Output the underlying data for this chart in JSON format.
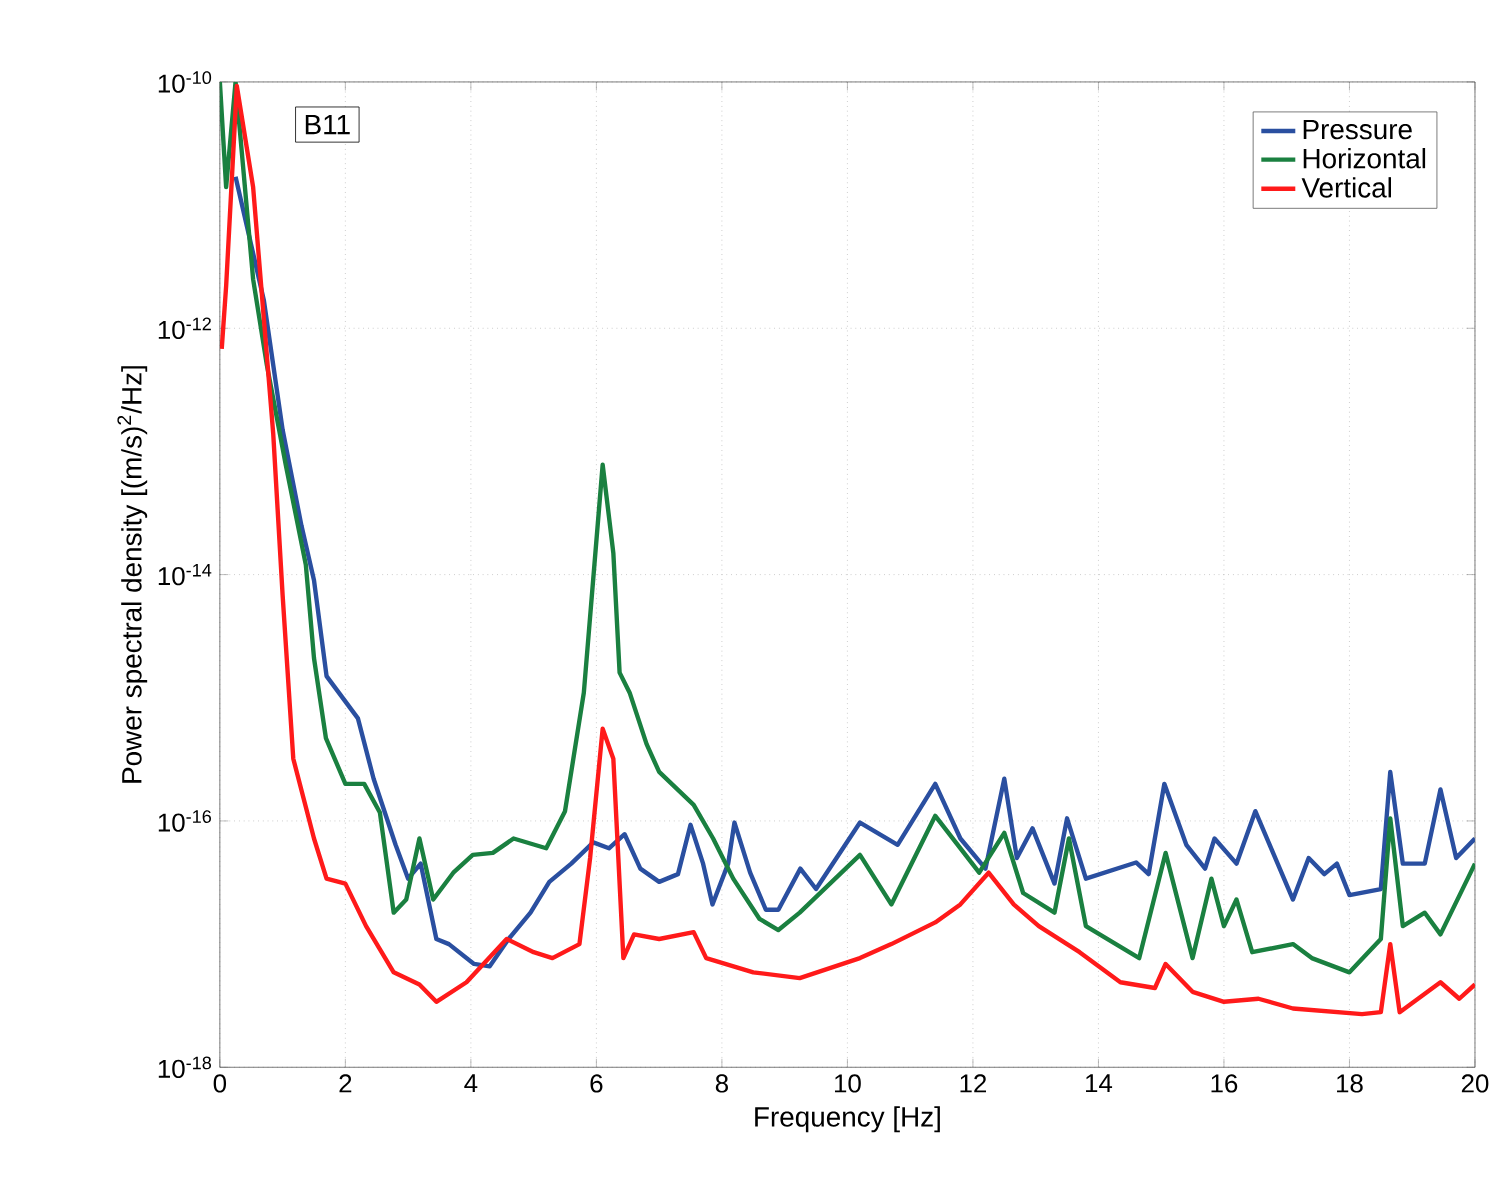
{
  "chart_data": {
    "type": "line",
    "xlabel": "Frequency [Hz]",
    "ylabel": "Power spectral density [(m/s)$^{2}$/Hz]",
    "annotations": [
      "B11"
    ],
    "log": "y",
    "grid": true,
    "legend": "top right",
    "line_style": "solid",
    "xlim": [
      0,
      20
    ],
    "ylim": [
      1e-18,
      1e-10
    ],
    "xticks": [
      0,
      2,
      4,
      6,
      8,
      10,
      12,
      14,
      16,
      18,
      20
    ],
    "yticks": [
      {
        "value": 1e-18,
        "label": "10$^{-18}$"
      },
      {
        "value": 1e-16,
        "label": "10$^{-16}$"
      },
      {
        "value": 1e-14,
        "label": "10$^{-14}$"
      },
      {
        "value": 1e-12,
        "label": "10$^{-12}$"
      },
      {
        "value": 1e-10,
        "label": "10$^{-10}$"
      }
    ],
    "series": [
      {
        "name": "Pressure",
        "color": "#2a4fa0",
        "x": [
          0.25,
          0.7,
          1.0,
          1.3,
          1.5,
          1.7,
          2.2,
          2.45,
          2.8,
          3.0,
          3.2,
          3.45,
          3.65,
          4.05,
          4.3,
          4.6,
          4.95,
          5.25,
          5.6,
          5.95,
          6.2,
          6.45,
          6.7,
          7.0,
          7.3,
          7.5,
          7.7,
          7.85,
          8.1,
          8.2,
          8.45,
          8.7,
          8.9,
          9.25,
          9.5,
          10.2,
          10.8,
          11.4,
          11.8,
          12.2,
          12.5,
          12.7,
          12.95,
          13.3,
          13.5,
          13.8,
          14.6,
          14.8,
          15.05,
          15.4,
          15.7,
          15.85,
          16.2,
          16.5,
          17.1,
          17.35,
          17.6,
          17.8,
          18.0,
          18.5,
          18.65,
          18.85,
          19.2,
          19.45,
          19.7,
          20
        ],
        "values": [
          1.7e-11,
          1.7e-12,
          1.5e-13,
          2.5e-14,
          9e-15,
          1.5e-15,
          6.8e-16,
          2.2e-16,
          6.4e-17,
          3.4e-17,
          4.5e-17,
          1.1e-17,
          1e-17,
          6.9e-18,
          6.6e-18,
          1.1e-17,
          1.8e-17,
          3.2e-17,
          4.5e-17,
          6.7e-17,
          6e-17,
          7.8e-17,
          4.1e-17,
          3.2e-17,
          3.7e-17,
          9.3e-17,
          4.5e-17,
          2.1e-17,
          4.5e-17,
          9.7e-17,
          3.8e-17,
          1.9e-17,
          1.9e-17,
          4.1e-17,
          2.8e-17,
          9.7e-17,
          6.4e-17,
          2e-16,
          7.2e-17,
          4.1e-17,
          2.2e-16,
          5e-17,
          8.7e-17,
          3.1e-17,
          1.05e-16,
          3.4e-17,
          4.6e-17,
          3.7e-17,
          2e-16,
          6.4e-17,
          4.1e-17,
          7.2e-17,
          4.5e-17,
          1.2e-16,
          2.3e-17,
          5e-17,
          3.7e-17,
          4.5e-17,
          2.5e-17,
          2.8e-17,
          2.5e-16,
          4.5e-17,
          4.5e-17,
          1.8e-16,
          5e-17,
          7.2e-17
        ]
      },
      {
        "name": "Horizontal",
        "color": "#1a8040",
        "x": [
          0.0,
          0.1,
          0.25,
          0.53,
          0.75,
          1.05,
          1.37,
          1.5,
          1.69,
          2.0,
          2.3,
          2.55,
          2.77,
          2.97,
          3.18,
          3.4,
          3.72,
          4.03,
          4.35,
          4.68,
          5.2,
          5.5,
          5.8,
          6.1,
          6.27,
          6.37,
          6.53,
          6.8,
          7.0,
          7.55,
          7.86,
          8.18,
          8.6,
          8.9,
          9.24,
          10.2,
          10.7,
          11.4,
          12.1,
          12.5,
          12.8,
          13.3,
          13.53,
          13.8,
          14.65,
          15.07,
          15.5,
          15.8,
          16.0,
          16.2,
          16.45,
          17.1,
          17.4,
          18.0,
          18.5,
          18.65,
          18.85,
          19.2,
          19.45,
          20
        ],
        "values": [
          1e-10,
          1.4e-11,
          1e-10,
          2.5e-12,
          5e-13,
          7.8e-14,
          1.2e-14,
          2.1e-15,
          4.7e-16,
          2e-16,
          2e-16,
          1.17e-16,
          1.8e-17,
          2.3e-17,
          7.2e-17,
          2.3e-17,
          3.8e-17,
          5.3e-17,
          5.5e-17,
          7.2e-17,
          6e-17,
          1.2e-16,
          1.1e-15,
          7.8e-14,
          1.5e-14,
          1.6e-15,
          1.1e-15,
          4.2e-16,
          2.5e-16,
          1.35e-16,
          7.2e-17,
          3.4e-17,
          1.6e-17,
          1.3e-17,
          1.8e-17,
          5.3e-17,
          2.1e-17,
          1.1e-16,
          3.8e-17,
          8e-17,
          2.6e-17,
          1.8e-17,
          7.2e-17,
          1.4e-17,
          7.7e-18,
          5.5e-17,
          7.7e-18,
          3.4e-17,
          1.4e-17,
          2.3e-17,
          8.6e-18,
          1e-17,
          7.7e-18,
          5.9e-18,
          1.1e-17,
          1.05e-16,
          1.4e-17,
          1.8e-17,
          1.2e-17,
          4.5e-17
        ]
      },
      {
        "name": "Vertical",
        "color": "#ff1a1a",
        "x": [
          0.03,
          0.1,
          0.27,
          0.53,
          0.85,
          1.0,
          1.17,
          1.5,
          1.7,
          2.0,
          2.33,
          2.77,
          3.18,
          3.45,
          3.93,
          4.57,
          5.0,
          5.3,
          5.73,
          5.9,
          6.1,
          6.27,
          6.43,
          6.6,
          7.0,
          7.55,
          7.75,
          8.5,
          9.24,
          10.2,
          10.7,
          11.4,
          11.8,
          12.25,
          12.65,
          13.05,
          13.7,
          14.35,
          14.9,
          15.07,
          15.5,
          16.0,
          16.55,
          17.1,
          18.2,
          18.5,
          18.65,
          18.8,
          19.45,
          19.75,
          20
        ],
        "values": [
          6.8e-13,
          2.2e-12,
          9.3e-11,
          1.4e-11,
          1.4e-13,
          6.8e-15,
          3.2e-16,
          7.2e-17,
          3.4e-17,
          3.1e-17,
          1.4e-17,
          5.9e-18,
          4.7e-18,
          3.4e-18,
          4.9e-18,
          1.1e-17,
          8.6e-18,
          7.7e-18,
          1e-17,
          5e-17,
          5.6e-16,
          3.2e-16,
          7.7e-18,
          1.2e-17,
          1.1e-17,
          1.25e-17,
          7.7e-18,
          5.9e-18,
          5.3e-18,
          7.7e-18,
          1e-17,
          1.5e-17,
          2.1e-17,
          3.8e-17,
          2.1e-17,
          1.4e-17,
          8.6e-18,
          4.9e-18,
          4.4e-18,
          6.9e-18,
          4.1e-18,
          3.4e-18,
          3.6e-18,
          3e-18,
          2.7e-18,
          2.8e-18,
          1e-17,
          2.8e-18,
          4.9e-18,
          3.6e-18,
          4.7e-18
        ]
      }
    ]
  }
}
